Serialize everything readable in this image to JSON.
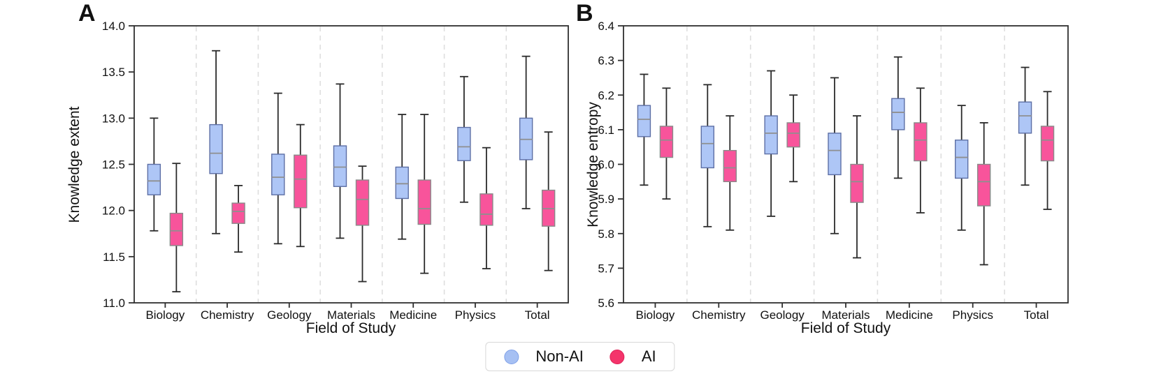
{
  "chart_data": [
    {
      "type": "box",
      "panel_label": "A",
      "xlabel": "Field of Study",
      "ylabel": "Knowledge extent",
      "ylim": [
        11.0,
        14.0
      ],
      "yticks": [
        14.0,
        13.5,
        13.0,
        12.5,
        12.0,
        11.5,
        11.0
      ],
      "ytick_labels": [
        "14.0",
        "13.5",
        "13.0",
        "12.5",
        "12.0",
        "11.5",
        "11.0"
      ],
      "categories": [
        "Biology",
        "Chemistry",
        "Geology",
        "Materials",
        "Medicine",
        "Physics",
        "Total"
      ],
      "grid": "dashed vertical separators between categories, full plot frame",
      "legend_position": "below figure, shared",
      "series": [
        {
          "name": "Non-AI",
          "color": "#aec6f6",
          "boxes": [
            {
              "whislo": 11.78,
              "q1": 12.17,
              "med": 12.32,
              "q3": 12.5,
              "whishi": 13.0
            },
            {
              "whislo": 11.75,
              "q1": 12.4,
              "med": 12.62,
              "q3": 12.93,
              "whishi": 13.73
            },
            {
              "whislo": 11.64,
              "q1": 12.17,
              "med": 12.36,
              "q3": 12.61,
              "whishi": 13.27
            },
            {
              "whislo": 11.7,
              "q1": 12.26,
              "med": 12.47,
              "q3": 12.7,
              "whishi": 13.37
            },
            {
              "whislo": 11.69,
              "q1": 12.13,
              "med": 12.29,
              "q3": 12.47,
              "whishi": 13.04
            },
            {
              "whislo": 12.09,
              "q1": 12.54,
              "med": 12.69,
              "q3": 12.9,
              "whishi": 13.45
            },
            {
              "whislo": 12.02,
              "q1": 12.55,
              "med": 12.77,
              "q3": 13.0,
              "whishi": 13.67
            }
          ]
        },
        {
          "name": "AI",
          "color": "#f8549b",
          "boxes": [
            {
              "whislo": 11.12,
              "q1": 11.62,
              "med": 11.78,
              "q3": 11.97,
              "whishi": 12.51
            },
            {
              "whislo": 11.55,
              "q1": 11.86,
              "med": 11.99,
              "q3": 12.08,
              "whishi": 12.27
            },
            {
              "whislo": 11.61,
              "q1": 12.03,
              "med": 12.34,
              "q3": 12.6,
              "whishi": 12.93
            },
            {
              "whislo": 11.23,
              "q1": 11.84,
              "med": 12.12,
              "q3": 12.33,
              "whishi": 12.48
            },
            {
              "whislo": 11.32,
              "q1": 11.85,
              "med": 12.02,
              "q3": 12.33,
              "whishi": 13.04
            },
            {
              "whislo": 11.37,
              "q1": 11.84,
              "med": 11.96,
              "q3": 12.18,
              "whishi": 12.68
            },
            {
              "whislo": 11.35,
              "q1": 11.83,
              "med": 12.02,
              "q3": 12.22,
              "whishi": 12.85
            }
          ]
        }
      ]
    },
    {
      "type": "box",
      "panel_label": "B",
      "xlabel": "Field of Study",
      "ylabel": "Knowledge entropy",
      "ylim": [
        5.6,
        6.4
      ],
      "yticks": [
        6.4,
        6.3,
        6.2,
        6.1,
        6.0,
        5.9,
        5.8,
        5.7,
        5.6
      ],
      "ytick_labels": [
        "6.4",
        "6.3",
        "6.2",
        "6.1",
        "6.0",
        "5.9",
        "5.8",
        "5.7",
        "5.6"
      ],
      "categories": [
        "Biology",
        "Chemistry",
        "Geology",
        "Materials",
        "Medicine",
        "Physics",
        "Total"
      ],
      "grid": "dashed vertical separators between categories, full plot frame",
      "legend_position": "below figure, shared",
      "series": [
        {
          "name": "Non-AI",
          "color": "#aec6f6",
          "boxes": [
            {
              "whislo": 5.94,
              "q1": 6.08,
              "med": 6.13,
              "q3": 6.17,
              "whishi": 6.26
            },
            {
              "whislo": 5.82,
              "q1": 5.99,
              "med": 6.06,
              "q3": 6.11,
              "whishi": 6.23
            },
            {
              "whislo": 5.85,
              "q1": 6.03,
              "med": 6.09,
              "q3": 6.14,
              "whishi": 6.27
            },
            {
              "whislo": 5.8,
              "q1": 5.97,
              "med": 6.04,
              "q3": 6.09,
              "whishi": 6.25
            },
            {
              "whislo": 5.96,
              "q1": 6.1,
              "med": 6.15,
              "q3": 6.19,
              "whishi": 6.31
            },
            {
              "whislo": 5.81,
              "q1": 5.96,
              "med": 6.02,
              "q3": 6.07,
              "whishi": 6.17
            },
            {
              "whislo": 5.94,
              "q1": 6.09,
              "med": 6.14,
              "q3": 6.18,
              "whishi": 6.28
            }
          ]
        },
        {
          "name": "AI",
          "color": "#f8549b",
          "boxes": [
            {
              "whislo": 5.9,
              "q1": 6.02,
              "med": 6.07,
              "q3": 6.11,
              "whishi": 6.22
            },
            {
              "whislo": 5.81,
              "q1": 5.95,
              "med": 5.99,
              "q3": 6.04,
              "whishi": 6.14
            },
            {
              "whislo": 5.95,
              "q1": 6.05,
              "med": 6.09,
              "q3": 6.12,
              "whishi": 6.2
            },
            {
              "whislo": 5.73,
              "q1": 5.89,
              "med": 5.95,
              "q3": 6.0,
              "whishi": 6.14
            },
            {
              "whislo": 5.86,
              "q1": 6.01,
              "med": 6.07,
              "q3": 6.12,
              "whishi": 6.22
            },
            {
              "whislo": 5.71,
              "q1": 5.88,
              "med": 5.95,
              "q3": 6.0,
              "whishi": 6.12
            },
            {
              "whislo": 5.87,
              "q1": 6.01,
              "med": 6.07,
              "q3": 6.11,
              "whishi": 6.21
            }
          ]
        }
      ]
    }
  ],
  "legend": {
    "items": [
      {
        "label": "Non-AI",
        "marker": "circle-icon",
        "fill": "#a6c0f3",
        "stroke": "#7fa0e8"
      },
      {
        "label": "AI",
        "marker": "circle-icon",
        "fill": "#f4346b",
        "stroke": "#de2257"
      }
    ]
  },
  "colors": {
    "background": "#ffffff",
    "frame": "#2f2f2f",
    "whisker": "#2b2b2b",
    "median": "#8f8f8f",
    "separator": "#dedede",
    "nonai_fill": "#aec6f6",
    "nonai_edge": "#5d6fa5",
    "ai_fill": "#f8549b",
    "ai_edge": "#8a8a8a",
    "text": "#111111"
  }
}
